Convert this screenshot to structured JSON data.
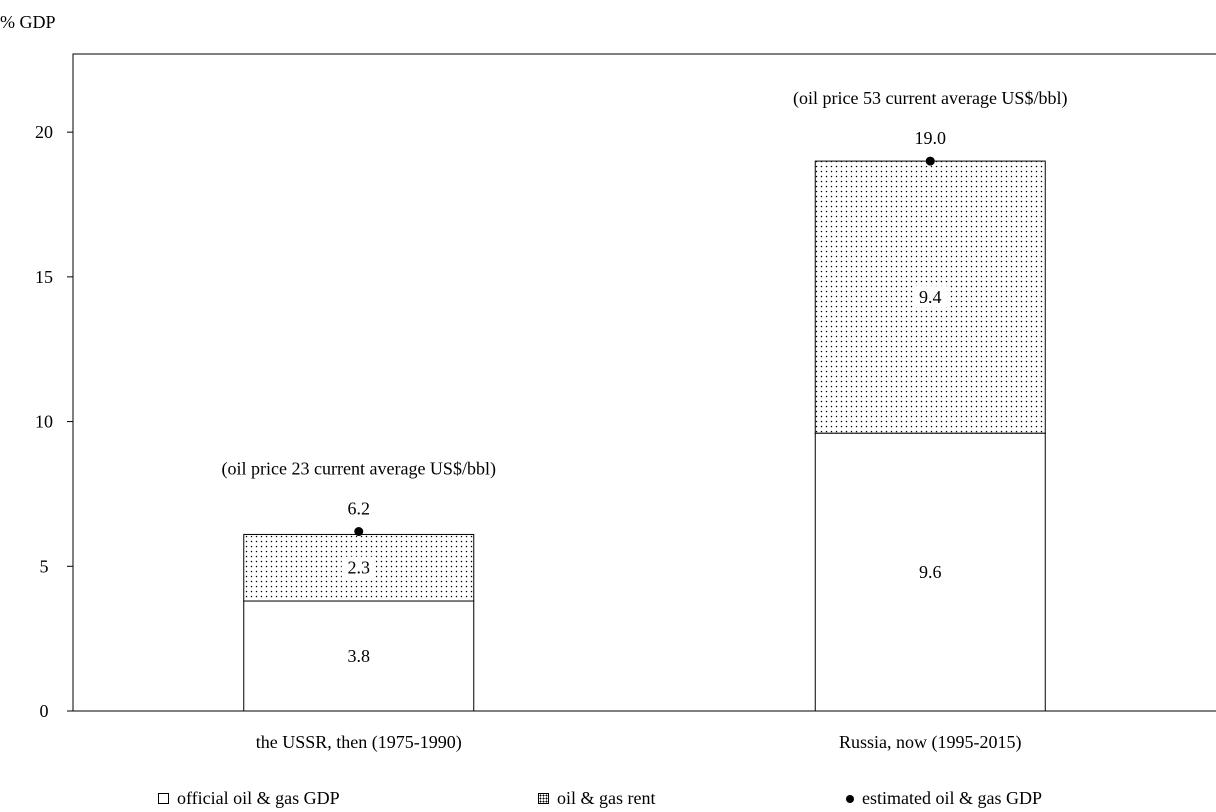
{
  "chart_data": {
    "type": "bar",
    "stacked": true,
    "ylabel": "% GDP",
    "ylim": [
      0,
      22.7
    ],
    "yticks": [
      0,
      5,
      10,
      15,
      20
    ],
    "categories": [
      "the USSR, then (1975-1990)",
      "Russia, now (1995-2015)"
    ],
    "series": [
      {
        "name": "official oil & gas GDP",
        "values": [
          3.8,
          9.6
        ],
        "fill": "#ffffff"
      },
      {
        "name": "oil & gas rent",
        "values": [
          2.3,
          9.4
        ],
        "fill": "dots"
      }
    ],
    "totals": {
      "name": "estimated oil & gas GDP",
      "values": [
        6.2,
        19.0
      ],
      "labels": [
        "6.2",
        "19.0"
      ]
    },
    "annotations": [
      "(oil price 23 current average US$/bbl)",
      "(oil price 53 current average US$/bbl)"
    ],
    "grid": false,
    "legend_position": "bottom"
  },
  "legend": {
    "items": [
      {
        "label": "official oil & gas GDP",
        "icon": "white-square-icon"
      },
      {
        "label": "oil & gas rent",
        "icon": "dotted-square-icon"
      },
      {
        "label": "estimated oil & gas GDP",
        "icon": "black-dot-icon"
      }
    ]
  }
}
